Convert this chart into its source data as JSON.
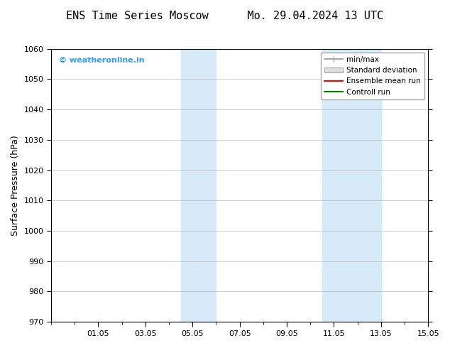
{
  "title": "ENS Time Series Moscow      Mo. 29.04.2024 13 UTC",
  "ylabel": "Surface Pressure (hPa)",
  "ylim": [
    970,
    1060
  ],
  "yticks": [
    970,
    980,
    990,
    1000,
    1010,
    1020,
    1030,
    1040,
    1050,
    1060
  ],
  "xlim_start": "2024-04-29",
  "xlim_end": "2024-05-15",
  "xtick_labels": [
    "01.05",
    "03.05",
    "05.05",
    "07.05",
    "09.05",
    "11.05",
    "13.05",
    "15.05"
  ],
  "xtick_positions": [
    2,
    4,
    6,
    8,
    10,
    12,
    14,
    16
  ],
  "shaded_bands": [
    {
      "x_start": 5.5,
      "x_end": 7.0,
      "color": "#d6eaf8"
    },
    {
      "x_start": 11.5,
      "x_end": 14.0,
      "color": "#d6eaf8"
    }
  ],
  "legend_entries": [
    {
      "label": "min/max",
      "color": "#aaaaaa",
      "lw": 1.5,
      "style": "solid"
    },
    {
      "label": "Standard deviation",
      "color": "#cccccc",
      "lw": 6,
      "style": "solid"
    },
    {
      "label": "Ensemble mean run",
      "color": "#ff0000",
      "lw": 1.5,
      "style": "solid"
    },
    {
      "label": "Controll run",
      "color": "#008000",
      "lw": 1.5,
      "style": "solid"
    }
  ],
  "watermark": "© weatheronline.in",
  "watermark_color": "#3399ff",
  "bg_color": "#ffffff",
  "plot_bg_color": "#ffffff",
  "border_color": "#000000",
  "title_fontsize": 11,
  "label_fontsize": 9,
  "tick_fontsize": 8
}
